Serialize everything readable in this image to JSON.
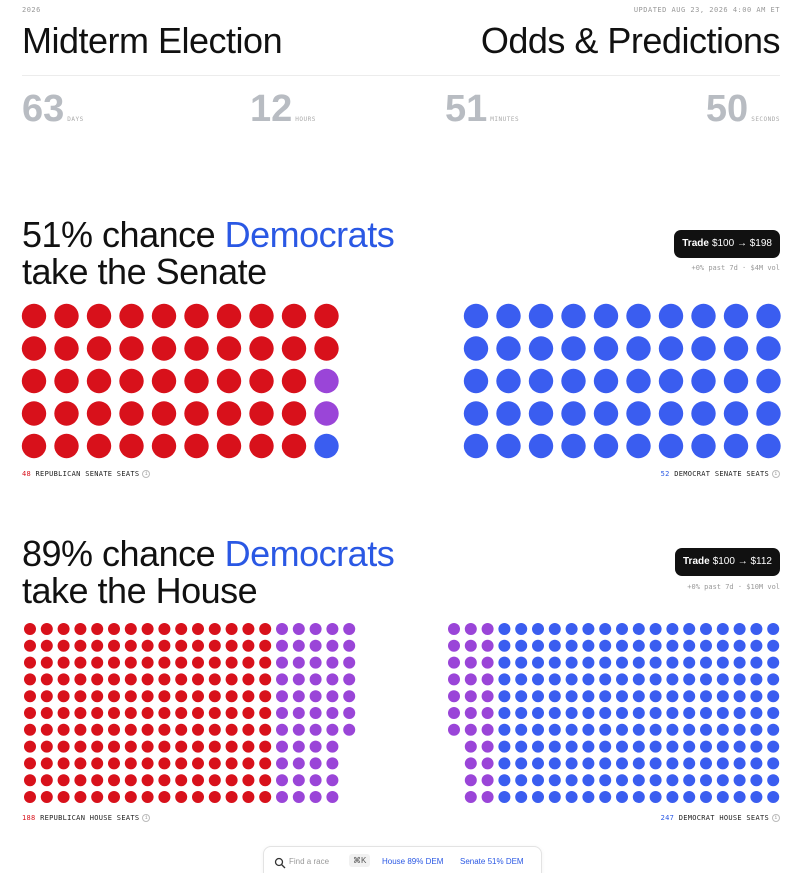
{
  "header": {
    "year": "2026",
    "updated": "UPDATED AUG 23, 2026 4:00 AM ET",
    "title_left": "Midterm Election",
    "title_right": "Odds & Predictions"
  },
  "countdown": [
    {
      "value": "63",
      "unit": "DAYS"
    },
    {
      "value": "12",
      "unit": "HOURS"
    },
    {
      "value": "51",
      "unit": "MINUTES"
    },
    {
      "value": "50",
      "unit": "SECONDS"
    }
  ],
  "senate": {
    "headline": {
      "prefix": "51% chance",
      "party": "Democrats",
      "suffix": "take the Senate"
    },
    "trade": {
      "label": "Trade",
      "value": "$100 → $198"
    },
    "trade_sub": "+0% past 7d · $4M vol",
    "left_dots": [
      {
        "color": "#d8111b",
        "count": 47
      },
      {
        "color": "#9a45d8",
        "count": 2
      },
      {
        "color": "#3a5df0",
        "count": 1
      }
    ],
    "right_dots": [
      {
        "color": "#3a5df0",
        "count": 50
      }
    ],
    "left_label": {
      "count": "48",
      "text": "REPUBLICAN SENATE SEATS"
    },
    "right_label": {
      "count": "52",
      "text": "DEMOCRAT SENATE SEATS"
    }
  },
  "house": {
    "headline": {
      "prefix": "89% chance",
      "party": "Democrats",
      "suffix": "take the House"
    },
    "trade": {
      "label": "Trade",
      "value": "$100 → $112"
    },
    "trade_sub": "+0% past 7d · $10M vol",
    "left_dots": [
      {
        "color": "#d8111b",
        "count": 165
      },
      {
        "color": "#9a45d8",
        "count": 51
      }
    ],
    "right_dots": [
      {
        "color": "#3a5df0",
        "count": 187
      },
      {
        "color": "#9a45d8",
        "count": 29
      }
    ],
    "left_label": {
      "count": "188",
      "text": "REPUBLICAN HOUSE SEATS"
    },
    "right_label": {
      "count": "247",
      "text": "DEMOCRAT HOUSE SEATS"
    }
  },
  "search_bar": {
    "placeholder": "Find a race",
    "shortcut": "⌘K",
    "house_link": "House 89% DEM",
    "senate_link": "Senate 51% DEM"
  }
}
